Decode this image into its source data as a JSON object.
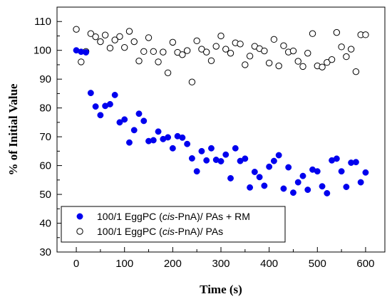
{
  "chart_data": {
    "type": "scatter",
    "xlabel": "Time (s)",
    "ylabel": "% of Initial Value",
    "xlim": [
      -40,
      640
    ],
    "ylim": [
      30,
      115
    ],
    "xticks": [
      0,
      100,
      200,
      300,
      400,
      500,
      600
    ],
    "yticks": [
      30,
      40,
      50,
      60,
      70,
      80,
      90,
      100,
      110
    ],
    "grid": false,
    "legend_position": "bottom-left",
    "series": [
      {
        "name_parts": [
          "100/1 EggPC (",
          "cis",
          "-PnA)/ PAs + RM"
        ],
        "marker": "filled-circle",
        "color": "#0000ee",
        "points": [
          [
            0,
            100.0
          ],
          [
            10,
            99.5
          ],
          [
            20,
            99.3
          ],
          [
            30,
            85.2
          ],
          [
            40,
            80.5
          ],
          [
            50,
            77.5
          ],
          [
            60,
            80.7
          ],
          [
            70,
            81.3
          ],
          [
            80,
            84.5
          ],
          [
            90,
            75.0
          ],
          [
            100,
            76.0
          ],
          [
            110,
            68.0
          ],
          [
            120,
            72.3
          ],
          [
            130,
            78.0
          ],
          [
            140,
            75.5
          ],
          [
            150,
            68.5
          ],
          [
            160,
            68.8
          ],
          [
            170,
            71.8
          ],
          [
            180,
            69.2
          ],
          [
            190,
            69.8
          ],
          [
            200,
            66.0
          ],
          [
            210,
            70.2
          ],
          [
            220,
            69.7
          ],
          [
            230,
            67.5
          ],
          [
            240,
            62.5
          ],
          [
            250,
            58.0
          ],
          [
            260,
            65.0
          ],
          [
            270,
            61.8
          ],
          [
            280,
            66.0
          ],
          [
            290,
            62.0
          ],
          [
            300,
            61.5
          ],
          [
            310,
            63.8
          ],
          [
            320,
            55.6
          ],
          [
            330,
            66.0
          ],
          [
            340,
            61.6
          ],
          [
            350,
            62.4
          ],
          [
            360,
            52.4
          ],
          [
            370,
            57.8
          ],
          [
            380,
            56.0
          ],
          [
            390,
            53.0
          ],
          [
            400,
            59.6
          ],
          [
            410,
            61.6
          ],
          [
            420,
            63.6
          ],
          [
            430,
            52.0
          ],
          [
            440,
            59.4
          ],
          [
            450,
            50.6
          ],
          [
            460,
            54.2
          ],
          [
            470,
            56.4
          ],
          [
            480,
            51.6
          ],
          [
            490,
            58.6
          ],
          [
            500,
            58.0
          ],
          [
            510,
            52.8
          ],
          [
            520,
            50.4
          ],
          [
            530,
            61.8
          ],
          [
            540,
            62.4
          ],
          [
            550,
            58.0
          ],
          [
            560,
            52.6
          ],
          [
            570,
            61.0
          ],
          [
            580,
            61.2
          ],
          [
            590,
            54.2
          ],
          [
            600,
            57.6
          ]
        ]
      },
      {
        "name_parts": [
          "100/1 EggPC (",
          "cis",
          "-PnA)/ PAs"
        ],
        "marker": "open-circle",
        "color": "#000000",
        "points": [
          [
            0,
            107.3
          ],
          [
            10,
            96.0
          ],
          [
            20,
            99.6
          ],
          [
            30,
            105.8
          ],
          [
            40,
            104.7
          ],
          [
            50,
            103.0
          ],
          [
            60,
            105.3
          ],
          [
            70,
            100.8
          ],
          [
            80,
            103.6
          ],
          [
            90,
            104.8
          ],
          [
            100,
            101.0
          ],
          [
            110,
            106.6
          ],
          [
            120,
            103.0
          ],
          [
            130,
            96.3
          ],
          [
            140,
            99.6
          ],
          [
            150,
            104.4
          ],
          [
            160,
            99.6
          ],
          [
            170,
            96.0
          ],
          [
            180,
            99.4
          ],
          [
            190,
            92.2
          ],
          [
            200,
            102.8
          ],
          [
            210,
            99.3
          ],
          [
            220,
            98.5
          ],
          [
            230,
            99.9
          ],
          [
            240,
            89.0
          ],
          [
            250,
            103.3
          ],
          [
            260,
            100.4
          ],
          [
            270,
            99.4
          ],
          [
            280,
            96.4
          ],
          [
            290,
            101.4
          ],
          [
            300,
            105.0
          ],
          [
            310,
            100.4
          ],
          [
            320,
            99.0
          ],
          [
            330,
            102.6
          ],
          [
            340,
            102.2
          ],
          [
            350,
            95.0
          ],
          [
            360,
            98.0
          ],
          [
            370,
            101.4
          ],
          [
            380,
            100.6
          ],
          [
            390,
            99.8
          ],
          [
            400,
            95.6
          ],
          [
            410,
            103.8
          ],
          [
            420,
            94.6
          ],
          [
            430,
            101.6
          ],
          [
            440,
            99.4
          ],
          [
            450,
            99.8
          ],
          [
            460,
            96.2
          ],
          [
            470,
            94.4
          ],
          [
            480,
            99.0
          ],
          [
            490,
            105.8
          ],
          [
            500,
            94.6
          ],
          [
            510,
            94.2
          ],
          [
            520,
            95.8
          ],
          [
            530,
            96.8
          ],
          [
            540,
            106.2
          ],
          [
            550,
            101.2
          ],
          [
            560,
            97.8
          ],
          [
            570,
            100.4
          ],
          [
            580,
            92.6
          ],
          [
            590,
            105.4
          ],
          [
            600,
            105.4
          ]
        ]
      }
    ]
  }
}
